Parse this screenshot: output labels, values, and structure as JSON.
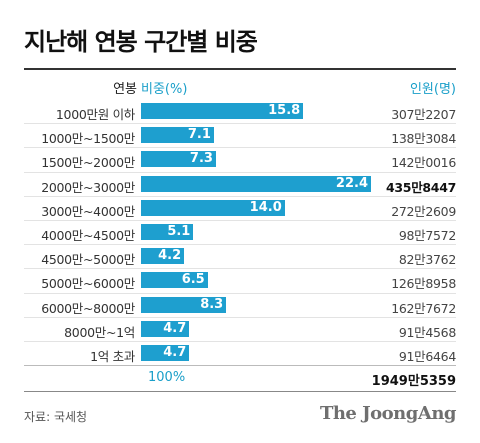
{
  "title": "지난해 연봉 구간별 비중",
  "header": {
    "category": "연봉",
    "share": "비중(%)",
    "people": "인원(명)"
  },
  "chart_data": {
    "type": "bar",
    "orientation": "horizontal",
    "categories": [
      "1000만원 이하",
      "1000만~1500만",
      "1500만~2000만",
      "2000만~3000만",
      "3000만~4000만",
      "4000만~4500만",
      "4500만~5000만",
      "5000만~6000만",
      "6000만~8000만",
      "8000만~1억",
      "1억 초과"
    ],
    "values": [
      15.8,
      7.1,
      7.3,
      22.4,
      14.0,
      5.1,
      4.2,
      6.5,
      8.3,
      4.7,
      4.7
    ],
    "value_labels": [
      "15.8",
      "7.1",
      "7.3",
      "22.4",
      "14.0",
      "5.1",
      "4.2",
      "6.5",
      "8.3",
      "4.7",
      "4.7"
    ],
    "people": [
      "307만2207",
      "138만3084",
      "142만0016",
      "435만8447",
      "272만2609",
      "98만7572",
      "82만3762",
      "126만8958",
      "162만7672",
      "91만4568",
      "91만6464"
    ],
    "highlight_index": 3,
    "bar_color": "#1e9fcf",
    "total_share": "100%",
    "total_people": "1949만5359"
  },
  "footer": {
    "source": "자료: 국세청",
    "brand": "The JoongAng"
  }
}
